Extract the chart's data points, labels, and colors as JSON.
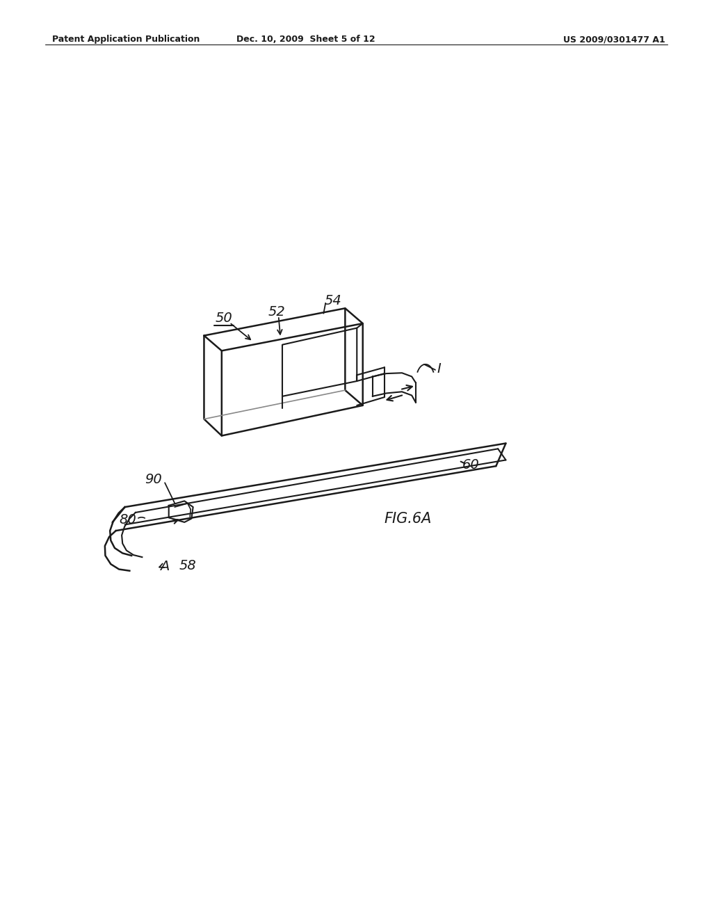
{
  "background_color": "#ffffff",
  "header_left": "Patent Application Publication",
  "header_center": "Dec. 10, 2009  Sheet 5 of 12",
  "header_right": "US 2009/0301477 A1",
  "figure_label": "FIG.6A",
  "line_color": "#1a1a1a"
}
